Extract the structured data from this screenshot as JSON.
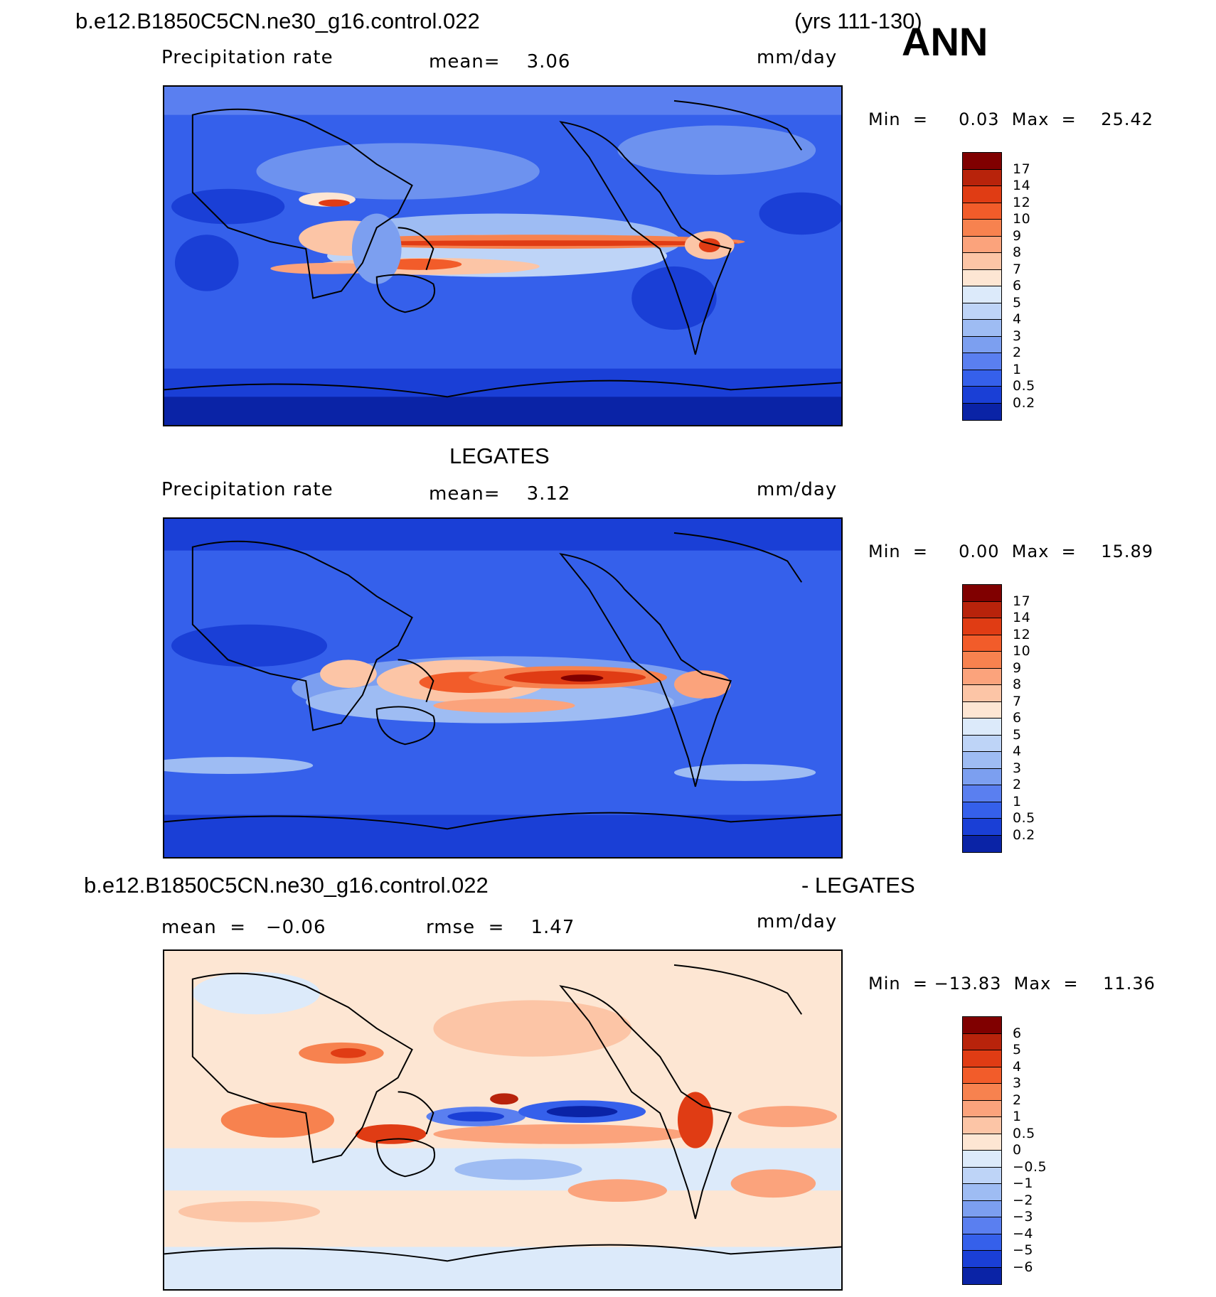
{
  "header": {
    "case_name": "b.e12.B1850C5CN.ne30_g16.control.022",
    "years": "(yrs 111-130)",
    "season": "ANN"
  },
  "panels": [
    {
      "id": "model",
      "left_label": "Precipitation rate",
      "center_label": "mean=    3.06",
      "units": "mm/day",
      "minmax": "Min  =     0.03  Max  =    25.42",
      "scale": "precip"
    },
    {
      "id": "obs",
      "title": "LEGATES",
      "left_label": "Precipitation rate",
      "center_label": "mean=    3.12",
      "units": "mm/day",
      "minmax": "Min  =     0.00  Max  =    15.89",
      "scale": "precip"
    },
    {
      "id": "diff",
      "title_left": "b.e12.B1850C5CN.ne30_g16.control.022",
      "title_right": "- LEGATES",
      "left_label": "mean  =   −0.06",
      "center_label": "rmse  =    1.47",
      "units": "mm/day",
      "minmax": "Min  = −13.83  Max  =    11.36",
      "scale": "diff"
    }
  ],
  "colorbars": {
    "precip": {
      "labels": [
        "17",
        "14",
        "12",
        "10",
        "9",
        "8",
        "7",
        "6",
        "5",
        "4",
        "3",
        "2",
        "1",
        "0.5",
        "0.2"
      ],
      "colors": [
        "#800000",
        "#b8230b",
        "#e03c14",
        "#f25c2a",
        "#f7824f",
        "#fba37c",
        "#fcc5a6",
        "#fde6d3",
        "#dceafa",
        "#bed4f7",
        "#9ebcf3",
        "#7c9ff0",
        "#5a7ff0",
        "#3560eb",
        "#1a3fd6",
        "#0a23a6"
      ]
    },
    "diff": {
      "labels": [
        "6",
        "5",
        "4",
        "3",
        "2",
        "1",
        "0.5",
        "0",
        "−0.5",
        "−1",
        "−2",
        "−3",
        "−4",
        "−5",
        "−6"
      ],
      "colors": [
        "#800000",
        "#b8230b",
        "#e03c14",
        "#f25c2a",
        "#f7824f",
        "#fba37c",
        "#fcc5a6",
        "#fde6d3",
        "#dceafa",
        "#bed4f7",
        "#9ebcf3",
        "#7c9ff0",
        "#5a7ff0",
        "#3560eb",
        "#1a3fd6",
        "#0a23a6"
      ]
    }
  }
}
